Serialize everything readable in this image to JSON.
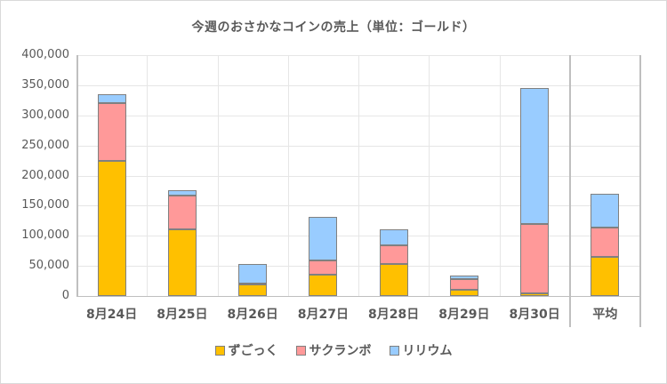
{
  "chart_data": {
    "type": "bar",
    "stacked": true,
    "title": "今週のおさかなコインの売上（単位：ゴールド）",
    "xlabel": "",
    "ylabel": "",
    "ylim": [
      0,
      400000
    ],
    "yticks": [
      "0",
      "50,000",
      "100,000",
      "150,000",
      "200,000",
      "250,000",
      "300,000",
      "350,000",
      "400,000"
    ],
    "grid": true,
    "legend_position": "bottom",
    "categories": [
      "8月24日",
      "8月25日",
      "8月26日",
      "8月27日",
      "8月28日",
      "8月29日",
      "8月30日",
      "平均"
    ],
    "series": [
      {
        "name": "ずごっく",
        "color": "#FFC000",
        "values": [
          225000,
          110000,
          20000,
          36000,
          53000,
          10000,
          5000,
          65571
        ]
      },
      {
        "name": "サクランボ",
        "color": "#FF9999",
        "values": [
          95000,
          57000,
          1000,
          23000,
          31000,
          18000,
          115000,
          48571
        ]
      },
      {
        "name": "リリウム",
        "color": "#99CCFF",
        "values": [
          15000,
          9000,
          32000,
          73000,
          26000,
          6000,
          225000,
          55143
        ]
      }
    ]
  }
}
